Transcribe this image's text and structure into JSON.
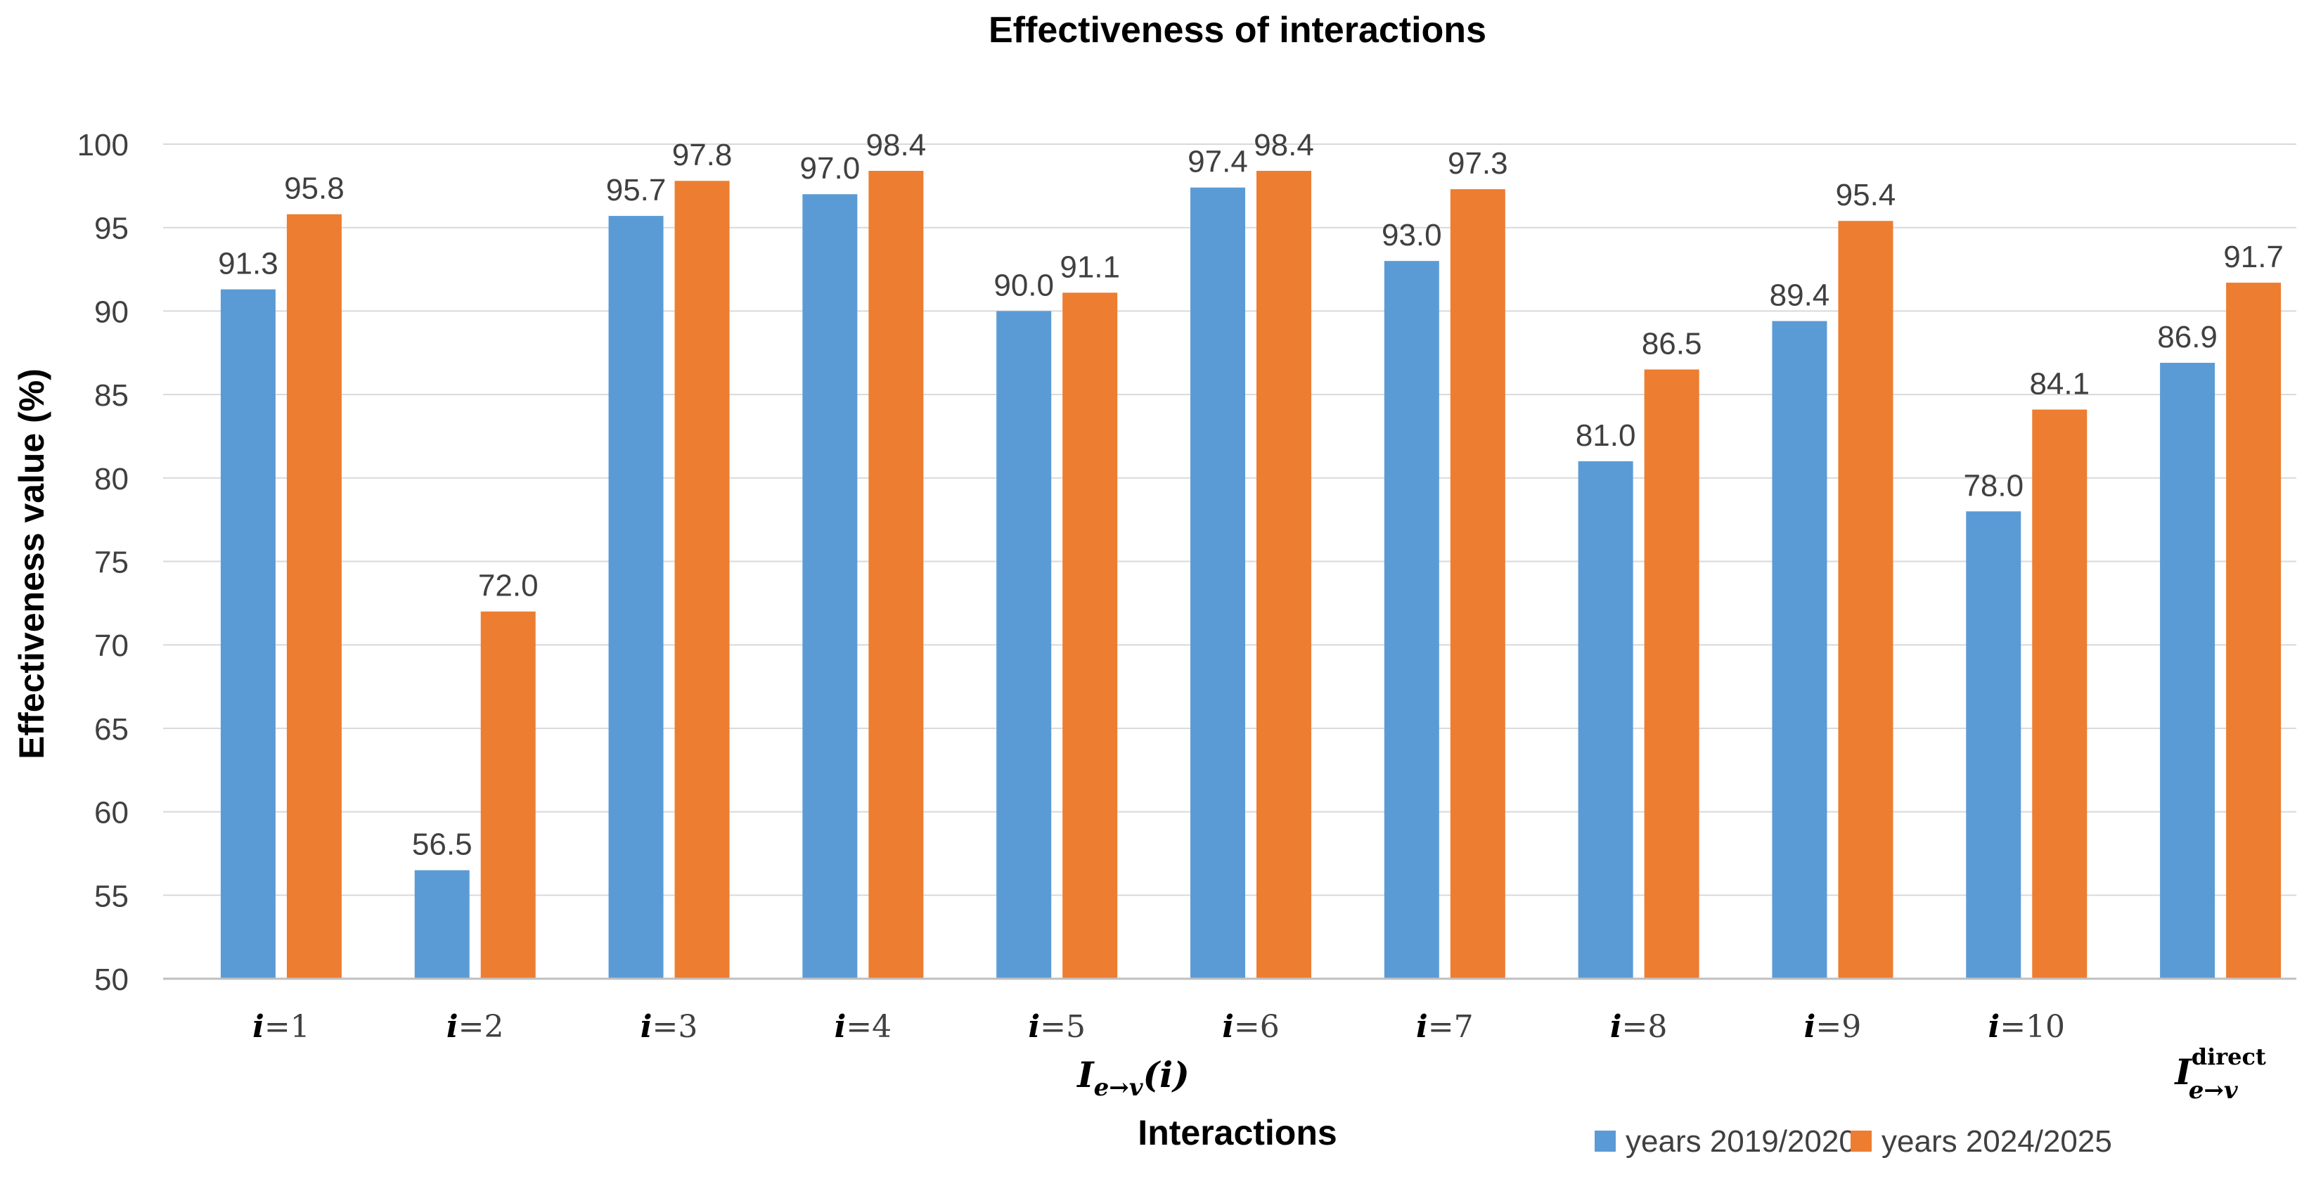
{
  "chart_data": {
    "type": "bar",
    "title": "Effectiveness of interactions",
    "xlabel": "Interactions",
    "ylabel": "Effectiveness value (%)",
    "ylim": [
      50,
      100
    ],
    "yticks": [
      50,
      55,
      60,
      65,
      70,
      75,
      80,
      85,
      90,
      95,
      100
    ],
    "grid": true,
    "legend_position": "bottom-right",
    "categories": [
      {
        "var": "i",
        "eq": "=1"
      },
      {
        "var": "i",
        "eq": "=2"
      },
      {
        "var": "i",
        "eq": "=3"
      },
      {
        "var": "i",
        "eq": "=4"
      },
      {
        "var": "i",
        "eq": "=5"
      },
      {
        "var": "i",
        "eq": "=6"
      },
      {
        "var": "i",
        "eq": "=7"
      },
      {
        "var": "i",
        "eq": "=8"
      },
      {
        "var": "i",
        "eq": "=9"
      },
      {
        "var": "i",
        "eq": "=10"
      },
      {
        "var": "I",
        "sub": "e→v",
        "sup": "direct"
      }
    ],
    "group_label": {
      "main": "I",
      "sub": "e→v",
      "arg": "(i)"
    },
    "series": [
      {
        "name": "years 2019/2020",
        "color": "#5B9BD5",
        "values": [
          91.3,
          56.5,
          95.7,
          97.0,
          90.0,
          97.4,
          93.0,
          81.0,
          89.4,
          78.0,
          86.9
        ],
        "labels": [
          "91.3",
          "56.5",
          "95.7",
          "97.0",
          "90.0",
          "97.4",
          "93.0",
          "81.0",
          "89.4",
          "78.0",
          "86.9"
        ]
      },
      {
        "name": "years 2024/2025",
        "color": "#ED7D31",
        "values": [
          95.8,
          72.0,
          97.8,
          98.4,
          91.1,
          98.4,
          97.3,
          86.5,
          95.4,
          84.1,
          91.7
        ],
        "labels": [
          "95.8",
          "72.0",
          "97.8",
          "98.4",
          "91.1",
          "98.4",
          "97.3",
          "86.5",
          "95.4",
          "84.1",
          "91.7"
        ]
      }
    ],
    "colors": {
      "grid": "#D9D9D9",
      "axis": "#BFBFBF",
      "text": "#404040",
      "title": "#000000"
    }
  }
}
